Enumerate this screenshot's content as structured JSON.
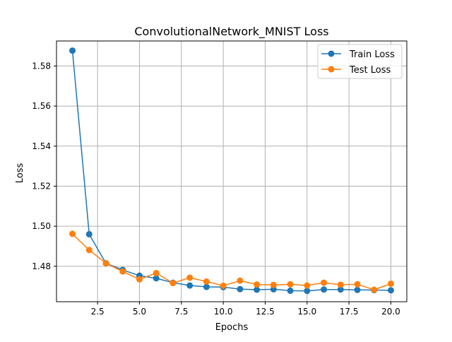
{
  "chart_data": {
    "type": "line",
    "title": "ConvolutionalNetwork_MNIST Loss",
    "xlabel": "Epochs",
    "ylabel": "Loss",
    "x": [
      1,
      2,
      3,
      4,
      5,
      6,
      7,
      8,
      9,
      10,
      11,
      12,
      13,
      14,
      15,
      16,
      17,
      18,
      19,
      20
    ],
    "xlim": [
      0.05,
      20.95
    ],
    "ylim": [
      1.4623,
      1.5925
    ],
    "xticks": [
      2.5,
      5.0,
      7.5,
      10.0,
      12.5,
      15.0,
      17.5,
      20.0
    ],
    "xtick_labels": [
      "2.5",
      "5.0",
      "7.5",
      "10.0",
      "12.5",
      "15.0",
      "17.5",
      "20.0"
    ],
    "yticks": [
      1.48,
      1.5,
      1.52,
      1.54,
      1.56,
      1.58
    ],
    "ytick_labels": [
      "1.48",
      "1.50",
      "1.52",
      "1.54",
      "1.56",
      "1.58"
    ],
    "grid": true,
    "legend_position": "top-right",
    "series": [
      {
        "name": "Train Loss",
        "color": "#1f77b4",
        "marker": "circle",
        "values": [
          1.5877,
          1.496,
          1.4815,
          1.4782,
          1.4753,
          1.474,
          1.4718,
          1.4704,
          1.4697,
          1.4696,
          1.4686,
          1.4683,
          1.4685,
          1.4678,
          1.4677,
          1.4684,
          1.4684,
          1.4682,
          1.4681,
          1.468
        ]
      },
      {
        "name": "Test Loss",
        "color": "#ff7f0e",
        "marker": "circle",
        "values": [
          1.4962,
          1.4881,
          1.4815,
          1.4774,
          1.4735,
          1.4766,
          1.4716,
          1.4743,
          1.4724,
          1.4703,
          1.4728,
          1.4709,
          1.4707,
          1.471,
          1.4704,
          1.4718,
          1.4708,
          1.471,
          1.4683,
          1.4713
        ]
      }
    ]
  }
}
